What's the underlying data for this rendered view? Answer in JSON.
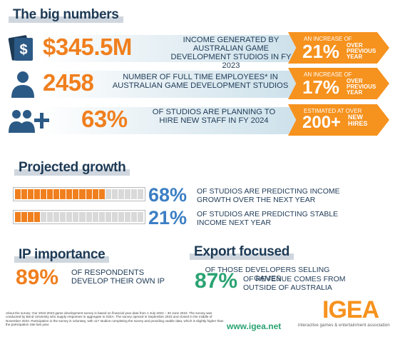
{
  "sections": {
    "big_numbers": "The big numbers",
    "projected_growth": "Projected growth",
    "ip_importance": "IP importance",
    "export_focused": "Export focused"
  },
  "big_numbers": [
    {
      "icon": "cash-icon",
      "value": "$345.5M",
      "description": "INCOME GENERATED BY AUSTRALIAN GAME DEVELOPMENT STUDIOS IN FY 2023",
      "arrow_caption": "AN INCREASE OF",
      "arrow_value": "21%",
      "arrow_suffix": "OVER PREVIOUS YEAR"
    },
    {
      "icon": "person-icon",
      "value": "2458",
      "description": "NUMBER OF FULL TIME EMPLOYEES* IN AUSTRALIAN GAME DEVELOPMENT STUDIOS",
      "arrow_caption": "AN INCREASE OF",
      "arrow_value": "17%",
      "arrow_suffix": "OVER PREVIOUS YEAR"
    },
    {
      "icon": "group-add-icon",
      "value": "63%",
      "description": "OF STUDIOS ARE PLANNING TO HIRE NEW STAFF IN FY 2024",
      "arrow_caption": "ESTIMATED AT OVER",
      "arrow_value": "200+",
      "arrow_suffix": "NEW HIRES"
    }
  ],
  "projected_growth": [
    {
      "value": "68%",
      "fraction": 0.68,
      "text": "OF STUDIOS ARE PREDICTING INCOME GROWTH OVER THE NEXT YEAR"
    },
    {
      "value": "21%",
      "fraction": 0.21,
      "text": "OF STUDIOS ARE PREDICTING STABLE INCOME NEXT YEAR"
    }
  ],
  "ip_importance": {
    "value": "89%",
    "text": "OF RESPONDENTS DEVELOP THEIR OWN IP"
  },
  "export_focused": {
    "lead": "OF THOSE DEVELOPERS SELLING GAMES",
    "value": "87%",
    "text": "OF REVENUE COMES FROM OUTSIDE OF AUSTRALIA"
  },
  "footnote_label": "About the survey:",
  "footnote": "About the survey: Our 2022-2023 game development survey is based on financial year data from 1 July 2022 – 30 June 2023. The survey was conducted by Bond University who supply responses in aggregate to IGEA. The survey opened in September 2023 and closed in the middle of November 2023. Participation in the survey is voluntary, with 117 studios completing the survey and providing usable data, which is slightly higher than the participation rate last year.",
  "website": "www.igea.net",
  "logo": "IGEA",
  "logo_subtitle": "interactive games & entertainment association",
  "colors": {
    "orange": "#f07f1e",
    "blue": "#3c7fc4",
    "green": "#2aa372",
    "navy": "#1d3a55"
  }
}
